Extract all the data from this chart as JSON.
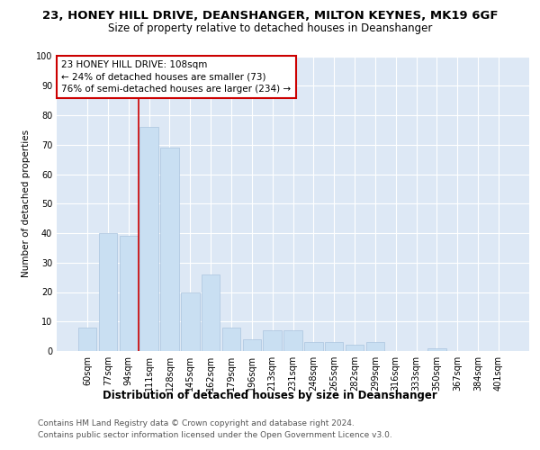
{
  "title1": "23, HONEY HILL DRIVE, DEANSHANGER, MILTON KEYNES, MK19 6GF",
  "title2": "Size of property relative to detached houses in Deanshanger",
  "xlabel": "Distribution of detached houses by size in Deanshanger",
  "ylabel": "Number of detached properties",
  "categories": [
    "60sqm",
    "77sqm",
    "94sqm",
    "111sqm",
    "128sqm",
    "145sqm",
    "162sqm",
    "179sqm",
    "196sqm",
    "213sqm",
    "231sqm",
    "248sqm",
    "265sqm",
    "282sqm",
    "299sqm",
    "316sqm",
    "333sqm",
    "350sqm",
    "367sqm",
    "384sqm",
    "401sqm"
  ],
  "values": [
    8,
    40,
    39,
    76,
    69,
    20,
    26,
    8,
    4,
    7,
    7,
    3,
    3,
    2,
    3,
    0,
    0,
    1,
    0,
    0,
    0
  ],
  "bar_color": "#c9dff2",
  "bar_edge_color": "#aac4de",
  "vline_x": 2.5,
  "vline_color": "#cc0000",
  "annotation_lines": [
    "23 HONEY HILL DRIVE: 108sqm",
    "← 24% of detached houses are smaller (73)",
    "76% of semi-detached houses are larger (234) →"
  ],
  "annotation_box_color": "#ffffff",
  "annotation_box_edge": "#cc0000",
  "ylim": [
    0,
    100
  ],
  "yticks": [
    0,
    10,
    20,
    30,
    40,
    50,
    60,
    70,
    80,
    90,
    100
  ],
  "plot_bg": "#dde8f5",
  "fig_bg": "#ffffff",
  "footer1": "Contains HM Land Registry data © Crown copyright and database right 2024.",
  "footer2": "Contains public sector information licensed under the Open Government Licence v3.0.",
  "title1_fontsize": 9.5,
  "title2_fontsize": 8.5,
  "xlabel_fontsize": 8.5,
  "ylabel_fontsize": 7.5,
  "tick_fontsize": 7,
  "footer_fontsize": 6.5,
  "annotation_fontsize": 7.5
}
